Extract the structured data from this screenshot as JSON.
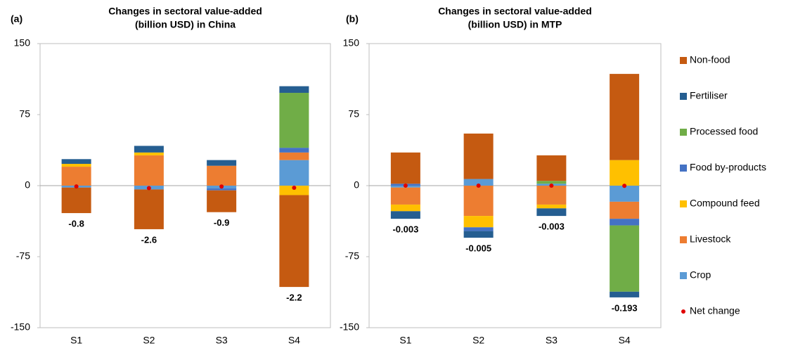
{
  "chart_data": [
    {
      "type": "stacked-bar",
      "panel": "(a)",
      "title": [
        "Changes in sectoral value-added",
        "(billion USD) in China"
      ],
      "categories": [
        "S1",
        "S2",
        "S3",
        "S4"
      ],
      "ylim": [
        -150,
        150
      ],
      "yticks": [
        150,
        75,
        0,
        -75,
        -150
      ],
      "series": [
        {
          "name": "Non-food",
          "color": "#c55a11",
          "values": [
            -27,
            -42,
            -23,
            -97
          ]
        },
        {
          "name": "Fertiliser",
          "color": "#255e91",
          "values": [
            5,
            7,
            6,
            7
          ]
        },
        {
          "name": "Processed food",
          "color": "#70ad47",
          "values": [
            0,
            0,
            0,
            58
          ]
        },
        {
          "name": "Food by-products",
          "color": "#4472c4",
          "values": [
            0,
            0,
            -2,
            5
          ]
        },
        {
          "name": "Compound feed",
          "color": "#ffc000",
          "values": [
            3,
            3,
            0,
            -10
          ]
        },
        {
          "name": "Livestock",
          "color": "#ed7d31",
          "values": [
            20,
            32,
            21,
            8
          ]
        },
        {
          "name": "Crop",
          "color": "#5b9bd5",
          "values": [
            -2,
            -4,
            -3,
            27
          ]
        }
      ],
      "net_change": {
        "name": "Net change",
        "color": "#e00000",
        "values": [
          -0.8,
          -2.6,
          -0.9,
          -2.2
        ]
      }
    },
    {
      "type": "stacked-bar",
      "panel": "(b)",
      "title": [
        "Changes in sectoral value-added",
        "(billion USD) in MTP"
      ],
      "categories": [
        "S1",
        "S2",
        "S3",
        "S4"
      ],
      "ylim": [
        -150,
        150
      ],
      "yticks": [
        150,
        75,
        0,
        -75,
        -150
      ],
      "series": [
        {
          "name": "Non-food",
          "color": "#c55a11",
          "values": [
            33,
            48,
            27,
            91
          ]
        },
        {
          "name": "Fertiliser",
          "color": "#255e91",
          "values": [
            -8,
            -7,
            -8,
            -6
          ]
        },
        {
          "name": "Processed food",
          "color": "#70ad47",
          "values": [
            0,
            0,
            3,
            -70
          ]
        },
        {
          "name": "Food by-products",
          "color": "#4472c4",
          "values": [
            2,
            -4,
            0,
            -7
          ]
        },
        {
          "name": "Compound feed",
          "color": "#ffc000",
          "values": [
            -7,
            -12,
            -4,
            27
          ]
        },
        {
          "name": "Livestock",
          "color": "#ed7d31",
          "values": [
            -18,
            -32,
            -20,
            -18
          ]
        },
        {
          "name": "Crop",
          "color": "#5b9bd5",
          "values": [
            -2,
            7,
            2,
            -17
          ]
        }
      ],
      "net_change": {
        "name": "Net change",
        "color": "#e00000",
        "values": [
          -0.003,
          -0.005,
          -0.003,
          -0.193
        ]
      }
    }
  ]
}
